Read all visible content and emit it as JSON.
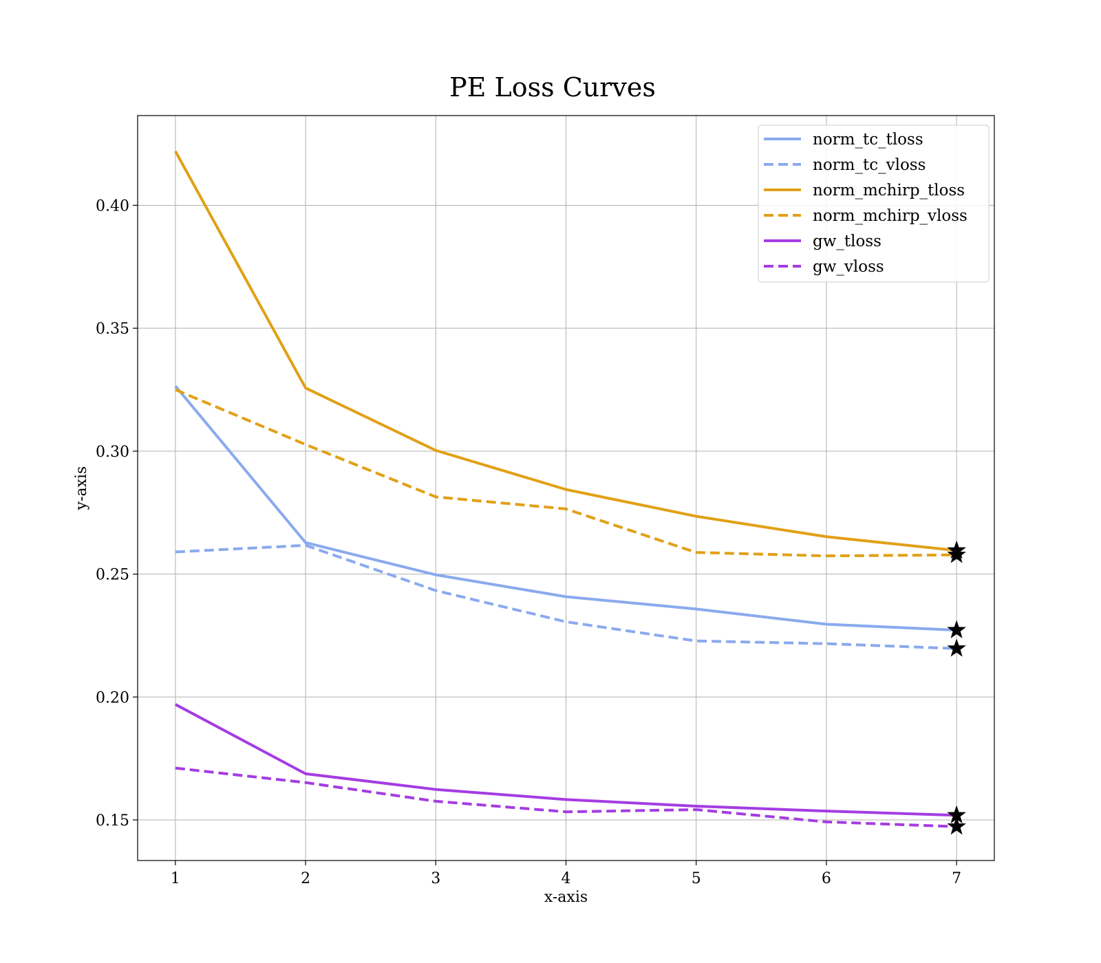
{
  "chart_data": {
    "type": "line",
    "title": "PE Loss Curves",
    "xlabel": "x-axis",
    "ylabel": "y-axis",
    "x": [
      1,
      2,
      3,
      4,
      5,
      6,
      7
    ],
    "xlim": [
      0.71,
      7.29
    ],
    "ylim": [
      0.1335,
      0.4365
    ],
    "xticks": [
      1,
      2,
      3,
      4,
      5,
      6,
      7
    ],
    "yticks": [
      0.15,
      0.2,
      0.25,
      0.3,
      0.35,
      0.4
    ],
    "ytick_labels": [
      "0.15",
      "0.20",
      "0.25",
      "0.30",
      "0.35",
      "0.40"
    ],
    "xtick_labels": [
      "1",
      "2",
      "3",
      "4",
      "5",
      "6",
      "7"
    ],
    "grid": true,
    "legend_position": "top-right",
    "end_marker": "star",
    "series": [
      {
        "name": "norm_tc_tloss",
        "color": "#8aaaee",
        "style": "solid",
        "values": [
          0.3265,
          0.2628,
          0.2497,
          0.2408,
          0.2358,
          0.2296,
          0.2272
        ]
      },
      {
        "name": "norm_tc_vloss",
        "color": "#8aaaee",
        "style": "dashed",
        "values": [
          0.259,
          0.2617,
          0.2433,
          0.2306,
          0.2228,
          0.2217,
          0.2197
        ]
      },
      {
        "name": "norm_mchirp_tloss",
        "color": "#e1a016",
        "style": "solid",
        "values": [
          0.422,
          0.3257,
          0.3003,
          0.2844,
          0.2735,
          0.2652,
          0.2596
        ]
      },
      {
        "name": "norm_mchirp_vloss",
        "color": "#e1a016",
        "style": "dashed",
        "values": [
          0.325,
          0.3027,
          0.2814,
          0.2765,
          0.2588,
          0.2574,
          0.2578
        ]
      },
      {
        "name": "gw_tloss",
        "color": "#a53ce1",
        "style": "solid",
        "values": [
          0.197,
          0.1688,
          0.1624,
          0.1583,
          0.1556,
          0.1536,
          0.1519
        ]
      },
      {
        "name": "gw_vloss",
        "color": "#a53ce1",
        "style": "dashed",
        "values": [
          0.1711,
          0.1652,
          0.1576,
          0.1533,
          0.1542,
          0.1492,
          0.1473
        ]
      }
    ]
  }
}
